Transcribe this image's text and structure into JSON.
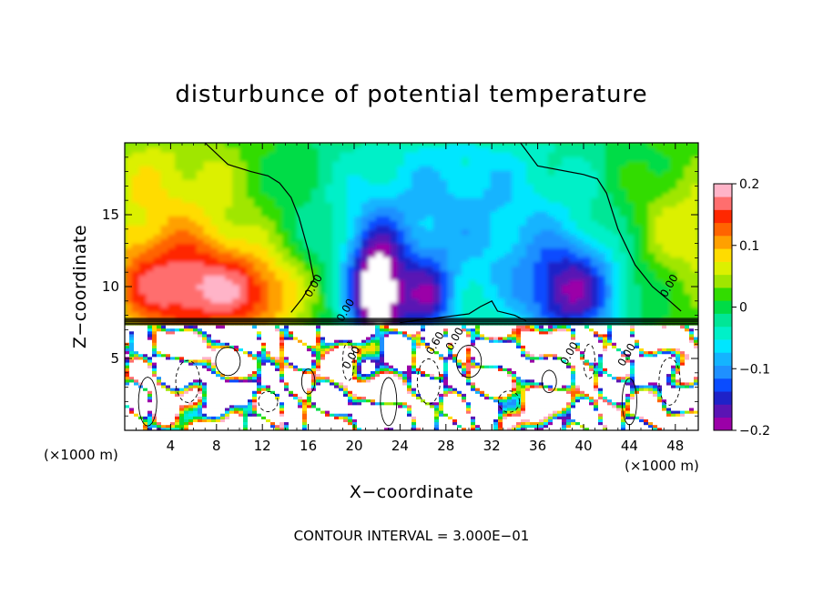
{
  "chart_data": {
    "type": "heatmap",
    "title": "disturbunce of potential temperature",
    "xlabel": "X−coordinate",
    "ylabel": "Z−coordinate",
    "x_unit_label": "(×1000 m)",
    "footer": "CONTOUR INTERVAL = 3.000E−01",
    "xlim": [
      0,
      50
    ],
    "ylim": [
      0,
      20
    ],
    "x_ticks": [
      4,
      8,
      12,
      16,
      20,
      24,
      28,
      32,
      36,
      40,
      44,
      48
    ],
    "y_ticks": [
      5,
      10,
      15
    ],
    "colorbar": {
      "range": [
        -0.2,
        0.2
      ],
      "ticks": [
        {
          "value": 0.2,
          "label": "0.2"
        },
        {
          "value": 0.1,
          "label": "0.1"
        },
        {
          "value": 0,
          "label": "0"
        },
        {
          "value": -0.1,
          "label": "−0.1"
        },
        {
          "value": -0.2,
          "label": "−0.2"
        }
      ],
      "colors": [
        "#9b00a8",
        "#5a14b4",
        "#1e22c8",
        "#0a4cff",
        "#1f90ff",
        "#14b4ff",
        "#00e6ff",
        "#00f0c8",
        "#00e696",
        "#00dc46",
        "#32dc00",
        "#a0e600",
        "#dcf000",
        "#ffdc00",
        "#ffa000",
        "#ff6400",
        "#ff2800",
        "#ff6e6e",
        "#ffb4c8"
      ]
    },
    "contour_labels": [
      "0.00",
      "0.00",
      "0.00",
      "0.00",
      "0.60",
      "0.00",
      "0.00",
      "0.00"
    ],
    "pattern": "Upper layer (z > 7.3) smooth: positive anomaly ~0.12–0.18 near x 2–14, z 8–13; negative anomaly ~−0.1 to −0.2 near x 20–24 and x 34–42, z 8–13; near zero elsewhere. Lower layer (z < 7.3) highly turbulent with values exceeding the color range (white)."
  }
}
